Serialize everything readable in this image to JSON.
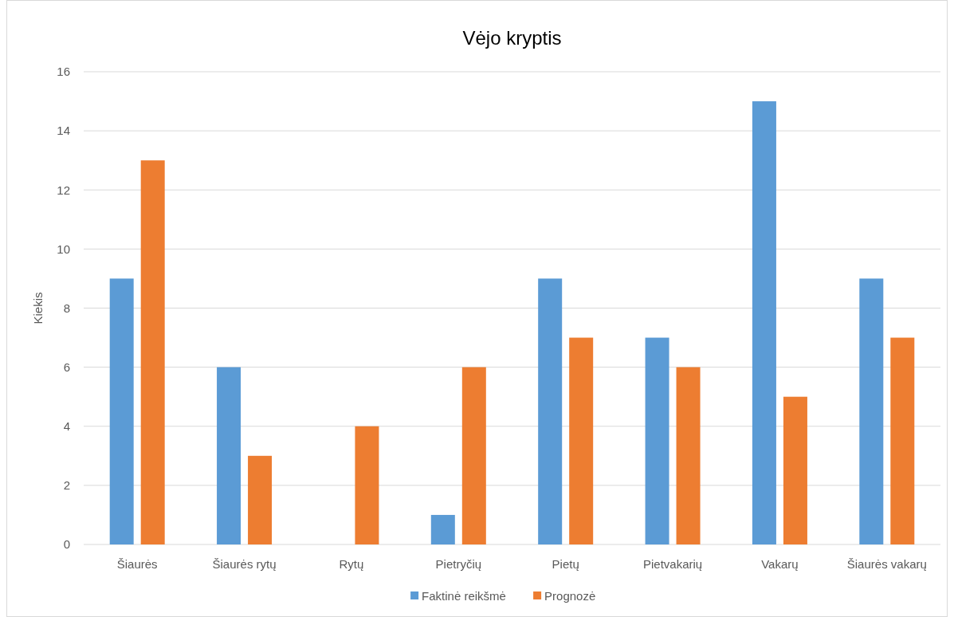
{
  "chart_data": {
    "type": "bar",
    "title": "Vėjo kryptis",
    "ylabel": "Kiekis",
    "categories": [
      "Šiaurės",
      "Šiaurės rytų",
      "Rytų",
      "Pietryčių",
      "Pietų",
      "Pietvakarių",
      "Vakarų",
      "Šiaurės vakarų"
    ],
    "series": [
      {
        "name": "Faktinė reikšmė",
        "color": "#5b9bd5",
        "values": [
          9,
          6,
          0,
          1,
          9,
          7,
          15,
          9
        ]
      },
      {
        "name": "Prognozė",
        "color": "#ed7d31",
        "values": [
          13,
          3,
          4,
          6,
          7,
          6,
          5,
          7
        ]
      }
    ],
    "ylim": [
      0,
      16
    ],
    "yticks": [
      0,
      2,
      4,
      6,
      8,
      10,
      12,
      14,
      16
    ],
    "grid": "y",
    "legend": "bottom"
  }
}
